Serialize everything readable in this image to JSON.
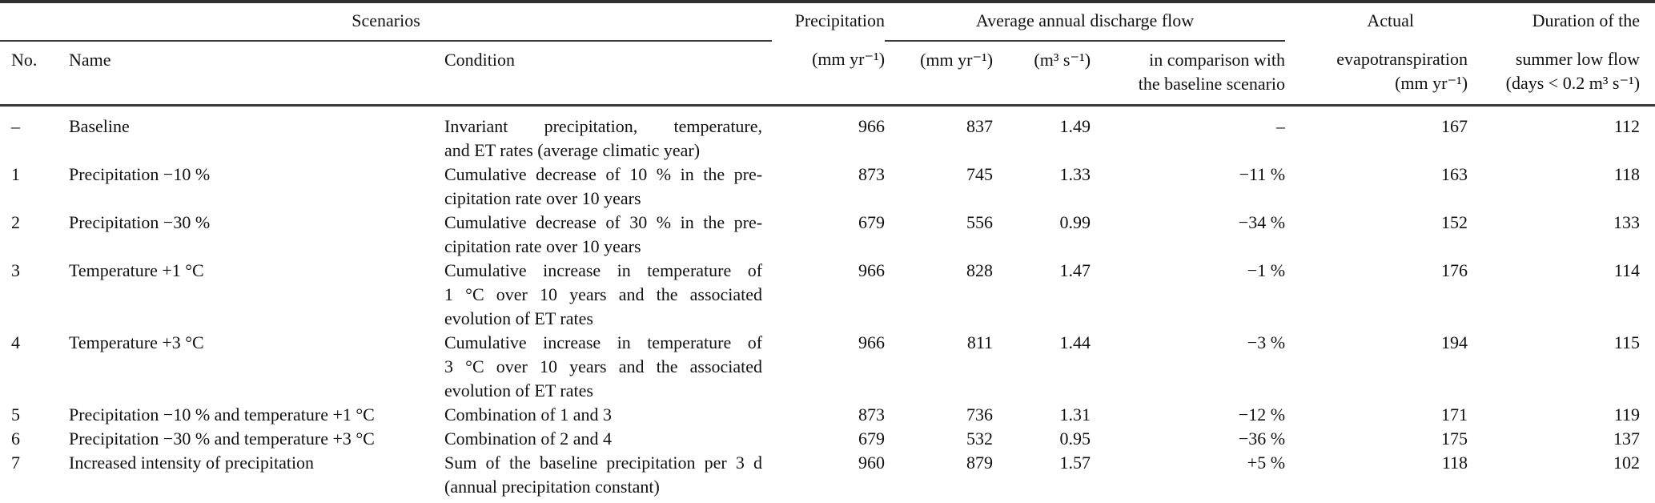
{
  "header": {
    "scenarios_group": "Scenarios",
    "precipitation_group": "Precipitation",
    "precipitation_unit": "(mm yr⁻¹)",
    "discharge_group": "Average annual discharge flow",
    "discharge_unit_mm": "(mm yr⁻¹)",
    "discharge_unit_m3": "(m³ s⁻¹)",
    "comparison_lines": [
      "in comparison with",
      "the baseline scenario"
    ],
    "actual_group": "Actual",
    "actual_lines": [
      "evapotranspiration",
      "(mm yr⁻¹)"
    ],
    "duration_group": "Duration of the",
    "duration_lines": [
      "summer low flow",
      "(days < 0.2 m³ s⁻¹)"
    ],
    "col_no": "No.",
    "col_name": "Name",
    "col_condition": "Condition"
  },
  "rows": [
    {
      "no": "–",
      "name": "Baseline",
      "condition": [
        "Invariant precipitation, temperature,",
        "and ET rates (average climatic year)"
      ],
      "precipitation": "966",
      "discharge_mm": "837",
      "discharge_m3": "1.49",
      "comparison": "–",
      "evapotranspiration": "167",
      "duration": "112"
    },
    {
      "no": "1",
      "name": "Precipitation −10 %",
      "condition": [
        "Cumulative decrease of 10 % in the pre-",
        "cipitation rate over 10 years"
      ],
      "precipitation": "873",
      "discharge_mm": "745",
      "discharge_m3": "1.33",
      "comparison": "−11 %",
      "evapotranspiration": "163",
      "duration": "118"
    },
    {
      "no": "2",
      "name": "Precipitation −30 %",
      "condition": [
        "Cumulative decrease of 30 % in the pre-",
        "cipitation rate over 10 years"
      ],
      "precipitation": "679",
      "discharge_mm": "556",
      "discharge_m3": "0.99",
      "comparison": "−34 %",
      "evapotranspiration": "152",
      "duration": "133"
    },
    {
      "no": "3",
      "name": "Temperature +1 °C",
      "condition": [
        "Cumulative increase in temperature of",
        "1 °C over 10 years and the associated",
        "evolution of ET rates"
      ],
      "precipitation": "966",
      "discharge_mm": "828",
      "discharge_m3": "1.47",
      "comparison": "−1 %",
      "evapotranspiration": "176",
      "duration": "114"
    },
    {
      "no": "4",
      "name": "Temperature +3 °C",
      "condition": [
        "Cumulative increase in temperature of",
        "3 °C over 10 years and the associated",
        "evolution of ET rates"
      ],
      "precipitation": "966",
      "discharge_mm": "811",
      "discharge_m3": "1.44",
      "comparison": "−3 %",
      "evapotranspiration": "194",
      "duration": "115"
    },
    {
      "no": "5",
      "name": "Precipitation −10 % and temperature +1 °C",
      "condition": [
        "Combination of 1 and 3"
      ],
      "precipitation": "873",
      "discharge_mm": "736",
      "discharge_m3": "1.31",
      "comparison": "−12 %",
      "evapotranspiration": "171",
      "duration": "119"
    },
    {
      "no": "6",
      "name": "Precipitation −30 % and temperature +3 °C",
      "condition": [
        "Combination of 2 and 4"
      ],
      "precipitation": "679",
      "discharge_mm": "532",
      "discharge_m3": "0.95",
      "comparison": "−36 %",
      "evapotranspiration": "175",
      "duration": "137"
    },
    {
      "no": "7",
      "name": "Increased intensity of precipitation",
      "condition": [
        "Sum of the baseline precipitation per 3 d",
        "(annual precipitation constant)"
      ],
      "precipitation": "960",
      "discharge_mm": "879",
      "discharge_m3": "1.57",
      "comparison": "+5 %",
      "evapotranspiration": "118",
      "duration": "102"
    }
  ]
}
